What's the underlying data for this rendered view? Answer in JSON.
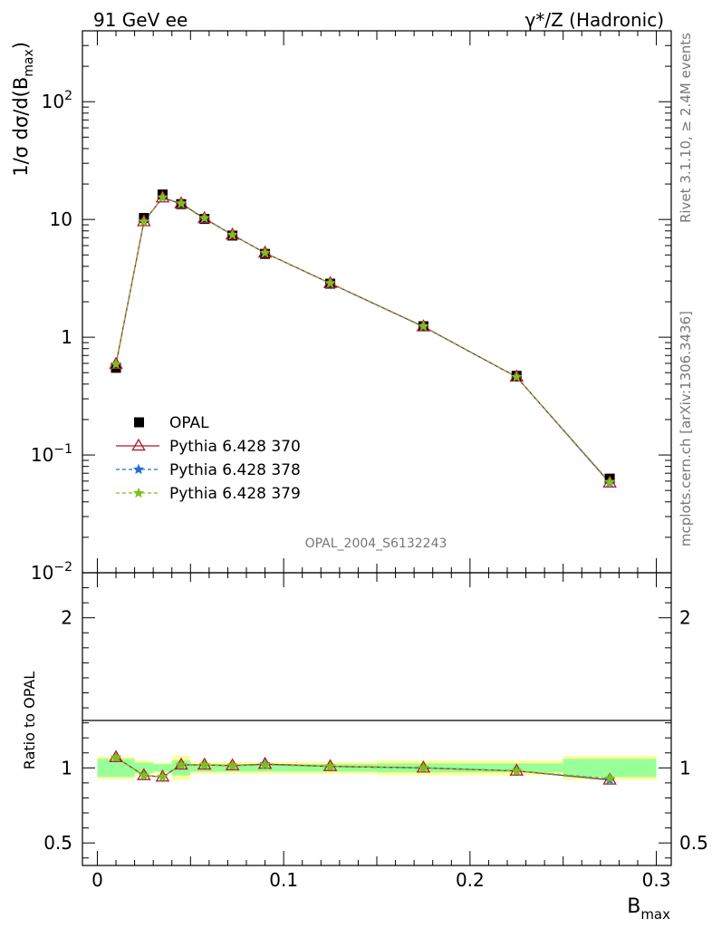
{
  "header": {
    "left_title": "91 GeV ee",
    "right_title_sup": "γ*/Z (Hadronic)"
  },
  "side_labels": {
    "rivet": "Rivet 3.1.10, ≥ 2.4M events",
    "mcplots": "mcplots.cern.ch [arXiv:1306.3436]"
  },
  "watermark": "OPAL_2004_S6132243",
  "colors": {
    "opal": "#000000",
    "p370": "#b2182b",
    "p378": "#1f6fd6",
    "p379": "#7fbf1a",
    "band_yellow": "#ffff99",
    "band_green": "#99ff99"
  },
  "chart_data": [
    {
      "type": "scatter",
      "panel": "main",
      "ylabel_parts": [
        "1/σ dσ/d(B",
        "max",
        ")"
      ],
      "log_y": true,
      "xlim": [
        -0.008,
        0.308
      ],
      "ylim": [
        0.01,
        400
      ],
      "y_tick_labels": [
        {
          "value": 0.01,
          "base": "10",
          "exp": "−2"
        },
        {
          "value": 0.1,
          "base": "10",
          "exp": "−1"
        },
        {
          "value": 1,
          "base": "1",
          "exp": ""
        },
        {
          "value": 10,
          "base": "10",
          "exp": ""
        },
        {
          "value": 100,
          "base": "10",
          "exp": "2"
        }
      ],
      "x": [
        0.01,
        0.025,
        0.035,
        0.045,
        0.0575,
        0.0725,
        0.09,
        0.125,
        0.175,
        0.225,
        0.275
      ],
      "series": [
        {
          "name": "OPAL",
          "marker": "square",
          "values": [
            0.55,
            10.3,
            16.3,
            13.5,
            10.1,
            7.3,
            5.1,
            2.85,
            1.24,
            0.47,
            0.063
          ]
        },
        {
          "name": "Pythia 6.428 370",
          "marker": "triangle",
          "line": "solid",
          "values": [
            0.59,
            9.6,
            15.3,
            13.6,
            10.2,
            7.4,
            5.2,
            2.87,
            1.23,
            0.46,
            0.058
          ]
        },
        {
          "name": "Pythia 6.428 378",
          "marker": "star",
          "line": "dashed",
          "values": [
            0.59,
            9.6,
            15.3,
            13.6,
            10.2,
            7.4,
            5.2,
            2.87,
            1.23,
            0.46,
            0.058
          ]
        },
        {
          "name": "Pythia 6.428 379",
          "marker": "star",
          "line": "dashed",
          "values": [
            0.59,
            9.6,
            15.4,
            13.7,
            10.3,
            7.4,
            5.2,
            2.88,
            1.24,
            0.46,
            0.059
          ]
        }
      ],
      "legend_position": "lower-left"
    },
    {
      "type": "line",
      "panel": "ratio",
      "ylabel": "Ratio to OPAL",
      "xlabel_parts": [
        "B",
        "max"
      ],
      "xlim": [
        -0.008,
        0.308
      ],
      "ylim": [
        0.35,
        2.3
      ],
      "x_ticks": [
        0,
        0.1,
        0.2,
        0.3
      ],
      "x_tick_labels": [
        "0",
        "0.1",
        "0.2",
        "0.3"
      ],
      "y_ticks": [
        0.5,
        1,
        2
      ],
      "y_tick_labels": [
        "0.5",
        "1",
        "2"
      ],
      "bins": [
        [
          0.0,
          0.02
        ],
        [
          0.02,
          0.03
        ],
        [
          0.03,
          0.04
        ],
        [
          0.04,
          0.05
        ],
        [
          0.05,
          0.065
        ],
        [
          0.065,
          0.08
        ],
        [
          0.08,
          0.1
        ],
        [
          0.1,
          0.15
        ],
        [
          0.15,
          0.2
        ],
        [
          0.2,
          0.25
        ],
        [
          0.25,
          0.3
        ]
      ],
      "band_total": [
        0.075,
        0.05,
        0.035,
        0.08,
        0.04,
        0.04,
        0.04,
        0.04,
        0.05,
        0.05,
        0.08
      ],
      "band_stat": [
        0.06,
        0.035,
        0.025,
        0.05,
        0.025,
        0.025,
        0.025,
        0.025,
        0.03,
        0.03,
        0.06
      ],
      "x": [
        0.01,
        0.025,
        0.035,
        0.045,
        0.0575,
        0.0725,
        0.09,
        0.125,
        0.175,
        0.225,
        0.275
      ],
      "series": [
        {
          "name": "Pythia 6.428 370",
          "values": [
            1.07,
            0.95,
            0.94,
            1.02,
            1.02,
            1.015,
            1.025,
            1.01,
            1.0,
            0.98,
            0.92
          ]
        },
        {
          "name": "Pythia 6.428 378",
          "values": [
            1.07,
            0.95,
            0.94,
            1.02,
            1.02,
            1.015,
            1.025,
            1.01,
            1.0,
            0.98,
            0.92
          ]
        },
        {
          "name": "Pythia 6.428 379",
          "values": [
            1.07,
            0.95,
            0.94,
            1.02,
            1.02,
            1.015,
            1.02,
            1.01,
            1.0,
            0.98,
            0.93
          ]
        }
      ]
    }
  ]
}
